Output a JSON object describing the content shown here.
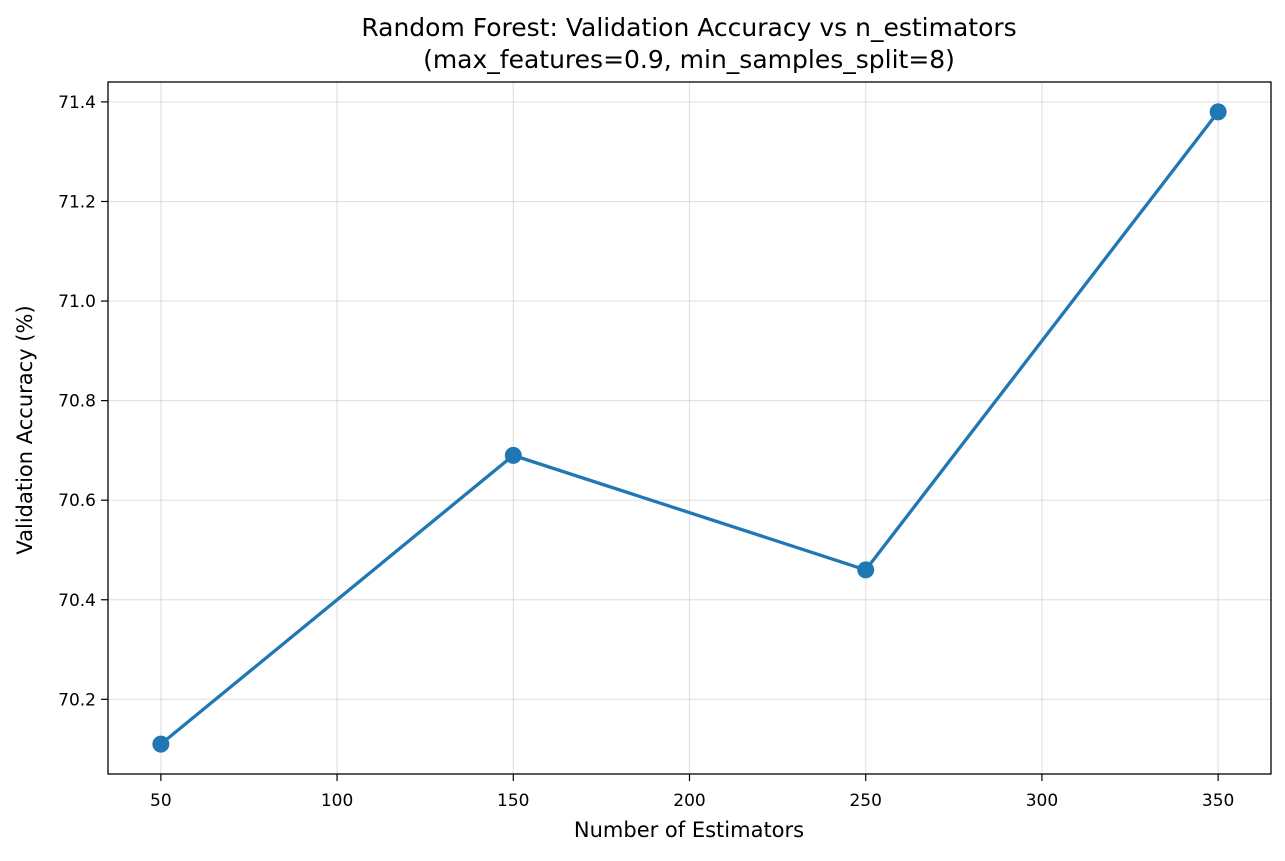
{
  "chart_data": {
    "type": "line",
    "title": "Random Forest: Validation Accuracy vs n_estimators",
    "subtitle": "(max_features=0.9, min_samples_split=8)",
    "xlabel": "Number of Estimators",
    "ylabel": "Validation Accuracy (%)",
    "x": [
      50,
      150,
      250,
      350
    ],
    "series": [
      {
        "values": [
          70.11,
          70.69,
          70.46,
          71.38
        ],
        "color": "#1f77b4",
        "marker": "circle"
      }
    ],
    "xlim": [
      35,
      365
    ],
    "ylim": [
      70.05,
      71.44
    ],
    "xticks": [
      50,
      100,
      150,
      200,
      250,
      300,
      350
    ],
    "yticks": [
      70.2,
      70.4,
      70.6,
      70.8,
      71.0,
      71.2,
      71.4
    ],
    "xtick_labels": [
      "50",
      "100",
      "150",
      "200",
      "250",
      "300",
      "350"
    ],
    "ytick_labels": [
      "70.2",
      "70.4",
      "70.6",
      "70.8",
      "71.0",
      "71.2",
      "71.4"
    ],
    "grid": true,
    "legend": "none"
  }
}
